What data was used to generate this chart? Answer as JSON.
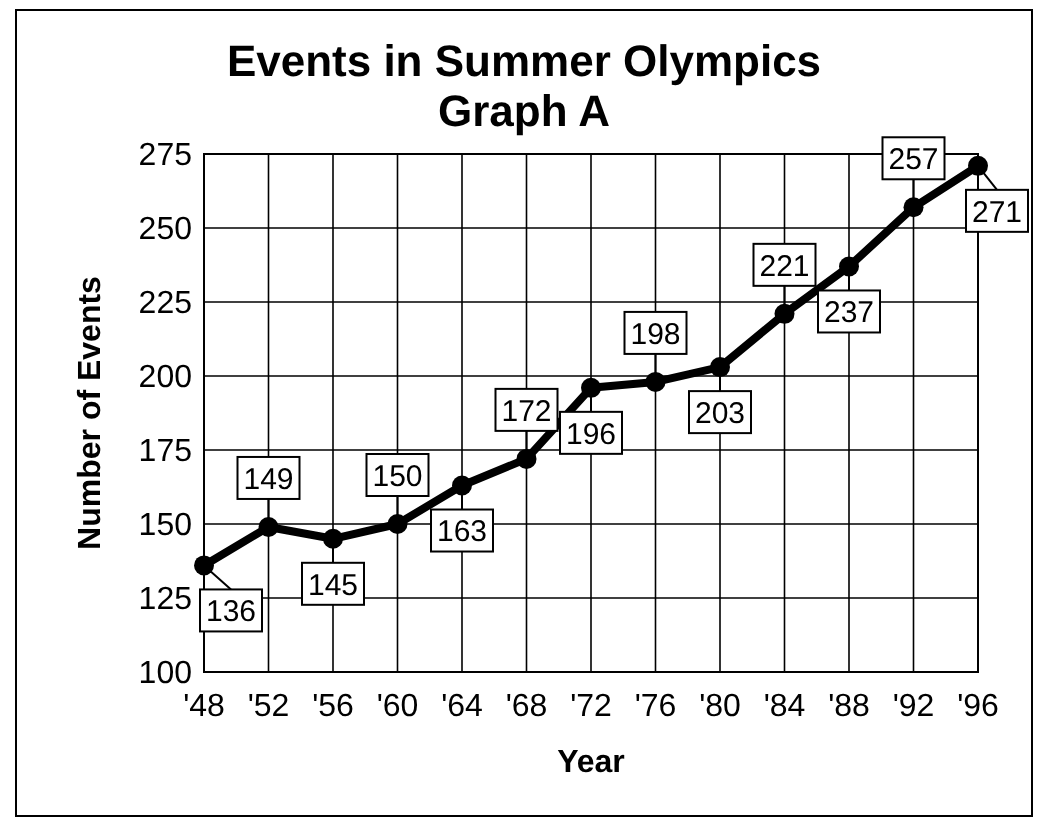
{
  "chart_data": {
    "type": "line",
    "title": "Events in Summer Olympics\nGraph A",
    "xlabel": "Year",
    "ylabel": "Number of Events",
    "categories": [
      "'48",
      "'52",
      "'56",
      "'60",
      "'64",
      "'68",
      "'72",
      "'76",
      "'80",
      "'84",
      "'88",
      "'92",
      "'96"
    ],
    "values": [
      136,
      149,
      145,
      150,
      163,
      172,
      196,
      198,
      203,
      221,
      237,
      257,
      271
    ],
    "color": "#000000",
    "marker": "circle",
    "line_style": "solid",
    "data_labels": true,
    "grid": true,
    "ylim": [
      100,
      275
    ],
    "yticks": [
      100,
      125,
      150,
      175,
      200,
      225,
      250,
      275
    ]
  }
}
